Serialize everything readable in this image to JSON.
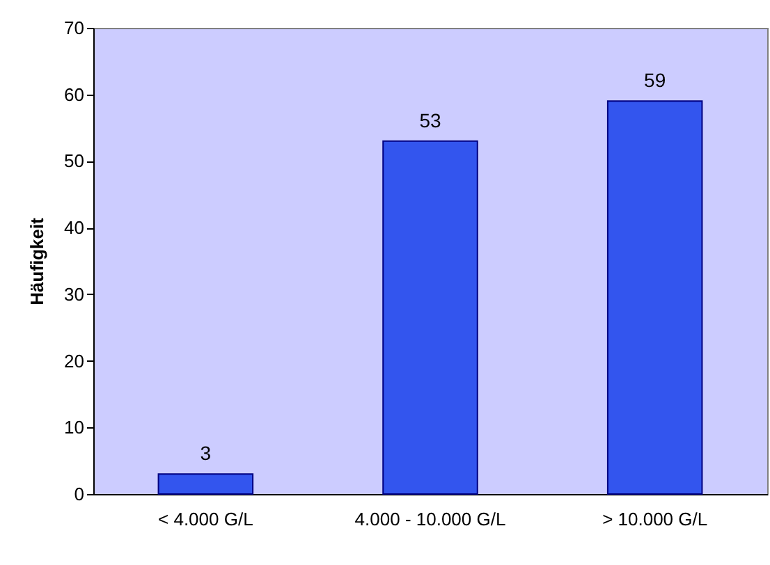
{
  "chart_data": {
    "type": "bar",
    "ylabel": "Häufigkeit",
    "categories": [
      "< 4.000 G/L",
      "4.000 - 10.000 G/L",
      "> 10.000 G/L"
    ],
    "values": [
      3,
      53,
      59
    ],
    "color": "#3355ee",
    "ylim": [
      0,
      70
    ],
    "yticks": [
      0,
      10,
      20,
      30,
      40,
      50,
      60,
      70
    ],
    "grid": false,
    "data_labels": true
  }
}
